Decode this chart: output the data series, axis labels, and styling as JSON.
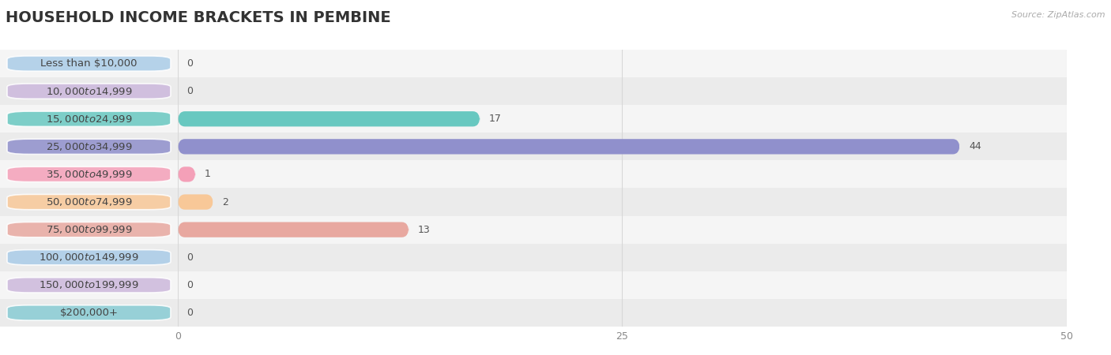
{
  "title": "HOUSEHOLD INCOME BRACKETS IN PEMBINE",
  "source": "Source: ZipAtlas.com",
  "categories": [
    "Less than $10,000",
    "$10,000 to $14,999",
    "$15,000 to $24,999",
    "$25,000 to $34,999",
    "$35,000 to $49,999",
    "$50,000 to $74,999",
    "$75,000 to $99,999",
    "$100,000 to $149,999",
    "$150,000 to $199,999",
    "$200,000+"
  ],
  "values": [
    0,
    0,
    17,
    44,
    1,
    2,
    13,
    0,
    0,
    0
  ],
  "bar_colors": [
    "#aacce8",
    "#ccb8dc",
    "#68c8c0",
    "#9090cc",
    "#f4a0b8",
    "#f8c898",
    "#e8a8a0",
    "#aacce8",
    "#ccb8dc",
    "#88ccd4"
  ],
  "xlim": [
    0,
    50
  ],
  "xticks": [
    0,
    25,
    50
  ],
  "background_color": "#ffffff",
  "row_colors": [
    "#f5f5f5",
    "#ebebeb"
  ],
  "grid_color": "#d8d8d8",
  "title_fontsize": 14,
  "label_fontsize": 9.5,
  "value_fontsize": 9
}
